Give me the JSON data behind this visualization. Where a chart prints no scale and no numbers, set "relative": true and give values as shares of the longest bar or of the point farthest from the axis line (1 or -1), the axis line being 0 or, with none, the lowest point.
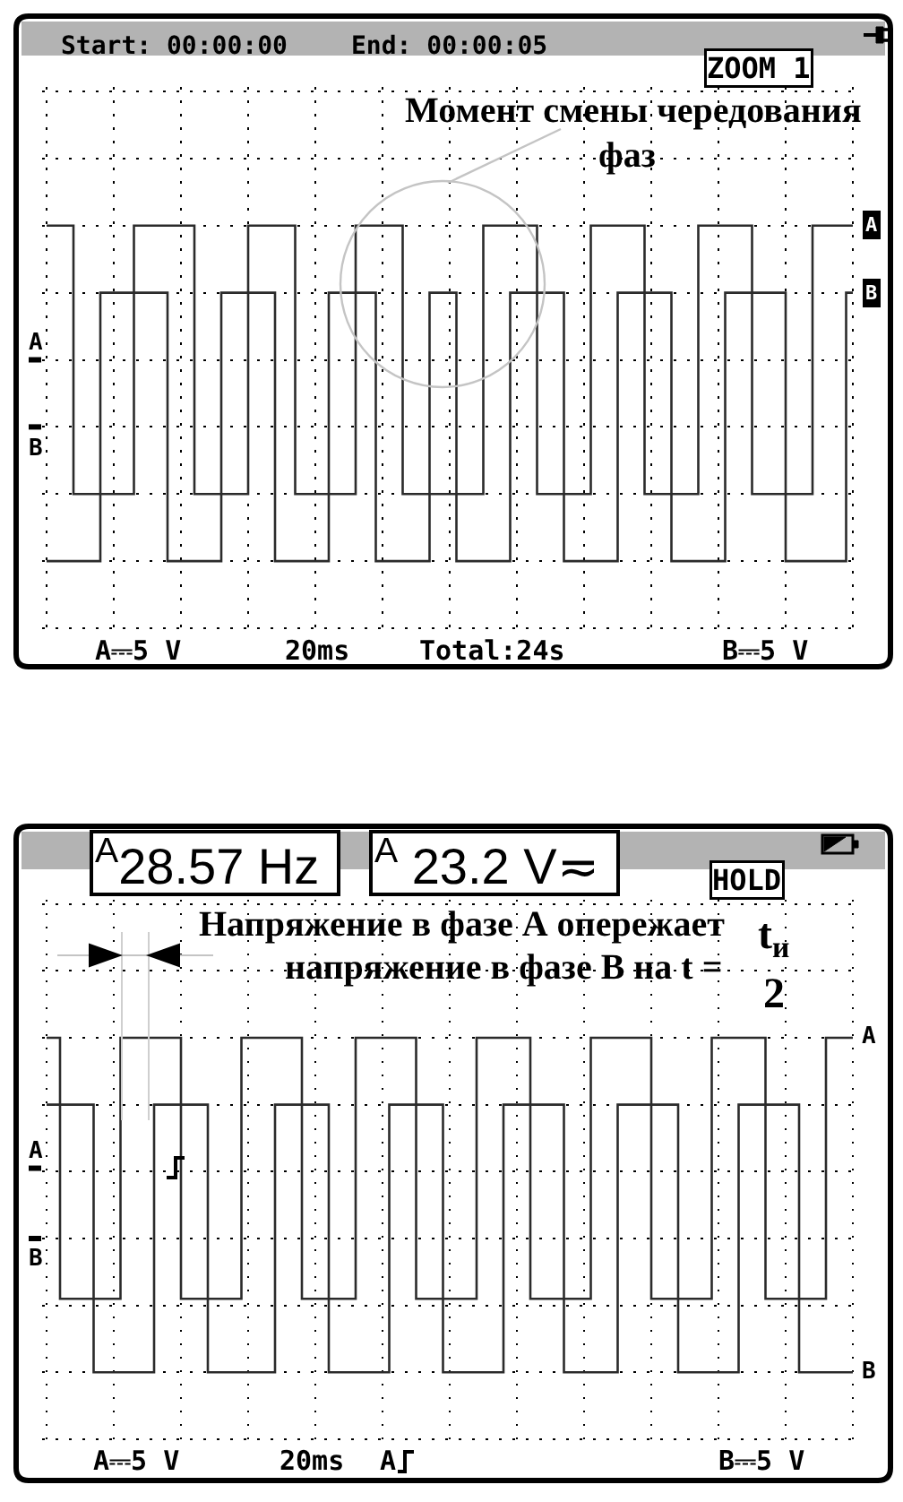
{
  "chart_data": [
    {
      "type": "step",
      "relative": true,
      "grid": true,
      "categories": [
        null,
        null,
        null,
        null,
        null,
        null,
        null,
        null,
        null,
        null,
        null,
        null,
        null,
        null,
        null,
        null,
        null,
        null,
        null,
        null,
        null,
        null,
        null,
        null,
        null,
        null,
        null,
        null,
        null,
        null,
        null,
        null,
        null,
        null,
        null,
        null,
        null,
        null,
        null,
        null,
        null,
        null,
        null,
        null,
        null,
        null,
        null,
        null,
        null,
        null,
        null,
        null,
        null,
        null,
        null,
        null,
        null,
        null,
        null,
        null,
        null,
        null,
        null,
        null,
        null,
        null,
        null,
        null,
        null,
        null,
        null,
        null,
        null,
        null,
        null,
        null,
        null,
        null,
        null,
        null,
        null,
        null,
        null,
        null,
        null,
        null,
        null,
        null,
        null,
        null,
        null,
        null,
        null,
        null,
        null,
        null,
        null,
        null,
        null,
        null,
        null,
        null,
        null,
        null,
        null,
        null,
        null,
        null,
        null,
        null,
        null,
        null,
        null,
        null,
        null,
        null,
        null,
        null,
        null,
        null,
        null
      ],
      "series": [
        {
          "name": "A",
          "color": "#2b2b2b",
          "values": [
            1,
            1,
            1,
            1,
            0.2,
            0.2,
            0.2,
            0.2,
            0.2,
            0.2,
            0.2,
            0.2,
            0.2,
            1,
            1,
            1,
            1,
            1,
            1,
            1,
            1,
            1,
            0.2,
            0.2,
            0.2,
            0.2,
            0.2,
            0.2,
            0.2,
            0.2,
            1,
            1,
            1,
            1,
            1,
            1,
            1,
            0.2,
            0.2,
            0.2,
            0.2,
            0.2,
            0.2,
            0.2,
            0.2,
            0.2,
            1,
            1,
            1,
            1,
            1,
            1,
            1,
            0.2,
            0.2,
            0.2,
            0.2,
            0.2,
            0.2,
            0.2,
            0.2,
            0.2,
            0.2,
            0.2,
            0.2,
            1,
            1,
            1,
            1,
            1,
            1,
            1,
            1,
            0.2,
            0.2,
            0.2,
            0.2,
            0.2,
            0.2,
            0.2,
            0.2,
            1,
            1,
            1,
            1,
            1,
            1,
            1,
            1,
            0.2,
            0.2,
            0.2,
            0.2,
            0.2,
            0.2,
            0.2,
            0.2,
            1,
            1,
            1,
            1,
            1,
            1,
            1,
            1,
            0.2,
            0.2,
            0.2,
            0.2,
            0.2,
            0.2,
            0.2,
            0.2,
            0.2,
            1,
            1,
            1,
            1,
            1,
            1,
            1
          ]
        },
        {
          "name": "B",
          "color": "#2b2b2b",
          "values": [
            0,
            0,
            0,
            0,
            0,
            0,
            0,
            0,
            0.8,
            0.8,
            0.8,
            0.8,
            0.8,
            0.8,
            0.8,
            0.8,
            0.8,
            0.8,
            0,
            0,
            0,
            0,
            0,
            0,
            0,
            0,
            0.8,
            0.8,
            0.8,
            0.8,
            0.8,
            0.8,
            0.8,
            0.8,
            0,
            0,
            0,
            0,
            0,
            0,
            0,
            0,
            0.8,
            0.8,
            0.8,
            0.8,
            0.8,
            0.8,
            0.8,
            0,
            0,
            0,
            0,
            0,
            0,
            0,
            0,
            0.8,
            0.8,
            0.8,
            0.8,
            0,
            0,
            0,
            0,
            0,
            0,
            0,
            0,
            0.8,
            0.8,
            0.8,
            0.8,
            0.8,
            0.8,
            0.8,
            0.8,
            0,
            0,
            0,
            0,
            0,
            0,
            0,
            0,
            0.8,
            0.8,
            0.8,
            0.8,
            0.8,
            0.8,
            0.8,
            0.8,
            0,
            0,
            0,
            0,
            0,
            0,
            0,
            0,
            0.8,
            0.8,
            0.8,
            0.8,
            0.8,
            0.8,
            0.8,
            0.8,
            0.8,
            0,
            0,
            0,
            0,
            0,
            0,
            0,
            0,
            0,
            0.8,
            0.8
          ]
        }
      ],
      "annotations": [
        "Start: 00:00:00",
        "End: 00:00:05",
        "ZOOM 1",
        "Момент смены чередования",
        "фаз",
        "A⎓5 V",
        "20ms",
        "Total:24s",
        "B⎓5 V"
      ]
    },
    {
      "type": "step",
      "relative": true,
      "grid": true,
      "categories": [
        null,
        null,
        null,
        null,
        null,
        null,
        null,
        null,
        null,
        null,
        null,
        null,
        null,
        null,
        null,
        null,
        null,
        null,
        null,
        null,
        null,
        null,
        null,
        null,
        null,
        null,
        null,
        null,
        null,
        null,
        null,
        null,
        null,
        null,
        null,
        null,
        null,
        null,
        null,
        null,
        null,
        null,
        null,
        null,
        null,
        null,
        null,
        null,
        null,
        null,
        null,
        null,
        null,
        null,
        null,
        null,
        null,
        null,
        null,
        null,
        null,
        null,
        null,
        null,
        null,
        null,
        null,
        null,
        null,
        null,
        null,
        null,
        null,
        null,
        null,
        null,
        null,
        null,
        null,
        null,
        null,
        null,
        null,
        null,
        null,
        null,
        null,
        null,
        null,
        null,
        null,
        null,
        null,
        null,
        null,
        null,
        null,
        null,
        null,
        null,
        null,
        null,
        null,
        null,
        null,
        null,
        null,
        null,
        null,
        null,
        null,
        null,
        null,
        null,
        null,
        null,
        null,
        null,
        null,
        null,
        null
      ],
      "series": [
        {
          "name": "A",
          "color": "#2b2b2b",
          "values": [
            1,
            1,
            0.22,
            0.22,
            0.22,
            0.22,
            0.22,
            0.22,
            0.22,
            0.22,
            0.22,
            1,
            1,
            1,
            1,
            1,
            1,
            1,
            1,
            1,
            0.22,
            0.22,
            0.22,
            0.22,
            0.22,
            0.22,
            0.22,
            0.22,
            0.22,
            1,
            1,
            1,
            1,
            1,
            1,
            1,
            1,
            1,
            0.22,
            0.22,
            0.22,
            0.22,
            0.22,
            0.22,
            0.22,
            0.22,
            1,
            1,
            1,
            1,
            1,
            1,
            1,
            1,
            1,
            0.22,
            0.22,
            0.22,
            0.22,
            0.22,
            0.22,
            0.22,
            0.22,
            0.22,
            1,
            1,
            1,
            1,
            1,
            1,
            1,
            1,
            0.22,
            0.22,
            0.22,
            0.22,
            0.22,
            0.22,
            0.22,
            0.22,
            0.22,
            1,
            1,
            1,
            1,
            1,
            1,
            1,
            1,
            1,
            0.22,
            0.22,
            0.22,
            0.22,
            0.22,
            0.22,
            0.22,
            0.22,
            0.22,
            1,
            1,
            1,
            1,
            1,
            1,
            1,
            1,
            0.22,
            0.22,
            0.22,
            0.22,
            0.22,
            0.22,
            0.22,
            0.22,
            0.22,
            1,
            1,
            1,
            1,
            1
          ]
        },
        {
          "name": "B",
          "color": "#2b2b2b",
          "values": [
            0.8,
            0.8,
            0.8,
            0.8,
            0.8,
            0.8,
            0.8,
            0,
            0,
            0,
            0,
            0,
            0,
            0,
            0,
            0,
            0.8,
            0.8,
            0.8,
            0.8,
            0.8,
            0.8,
            0.8,
            0.8,
            0,
            0,
            0,
            0,
            0,
            0,
            0,
            0,
            0,
            0,
            0.8,
            0.8,
            0.8,
            0.8,
            0.8,
            0.8,
            0.8,
            0.8,
            0,
            0,
            0,
            0,
            0,
            0,
            0,
            0,
            0,
            0.8,
            0.8,
            0.8,
            0.8,
            0.8,
            0.8,
            0.8,
            0.8,
            0,
            0,
            0,
            0,
            0,
            0,
            0,
            0,
            0,
            0.8,
            0.8,
            0.8,
            0.8,
            0.8,
            0.8,
            0.8,
            0.8,
            0.8,
            0,
            0,
            0,
            0,
            0,
            0,
            0,
            0,
            0.8,
            0.8,
            0.8,
            0.8,
            0.8,
            0.8,
            0.8,
            0.8,
            0.8,
            0,
            0,
            0,
            0,
            0,
            0,
            0,
            0,
            0,
            0.8,
            0.8,
            0.8,
            0.8,
            0.8,
            0.8,
            0.8,
            0.8,
            0.8,
            0,
            0,
            0,
            0,
            0,
            0,
            0,
            0,
            0
          ]
        }
      ],
      "annotations": [
        "$^{A}$28.57 Hz",
        "$^{A}$ 23.2 V≂",
        "HOLD",
        "Напряжение в фазе А опережает",
        "напряжение в фазе В на t =",
        "t$_{и}$",
        "2",
        "A⎓5 V",
        "20ms",
        "A",
        "B⎓5 V"
      ]
    }
  ]
}
